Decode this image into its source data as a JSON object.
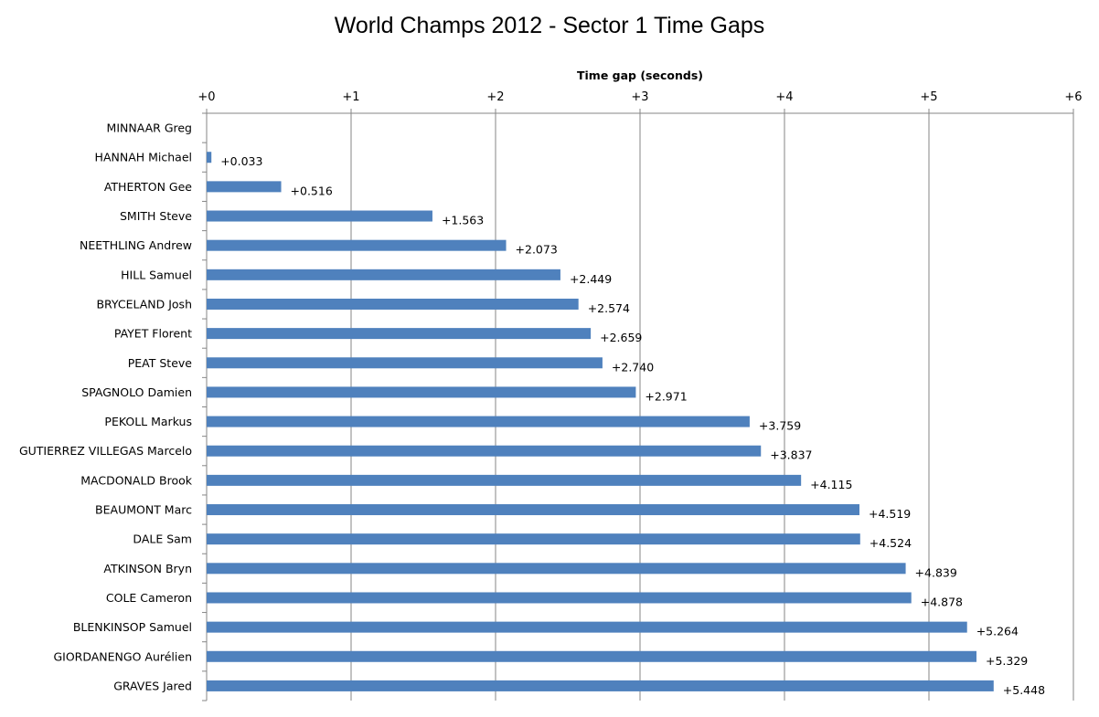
{
  "chart_data": {
    "type": "bar",
    "orientation": "horizontal",
    "title": "World Champs 2012 - Sector 1 Time Gaps",
    "xlabel": "Time gap (seconds)",
    "ylabel": "",
    "xlim": [
      0,
      6
    ],
    "x_ticks": [
      "+0",
      "+1",
      "+2",
      "+3",
      "+4",
      "+5",
      "+6"
    ],
    "x_axis_position": "top",
    "grid": "vertical major gridlines",
    "color": "#4f81bd",
    "categories": [
      "MINNAAR Greg",
      "HANNAH Michael",
      "ATHERTON Gee",
      "SMITH Steve",
      "NEETHLING Andrew",
      "HILL Samuel",
      "BRYCELAND Josh",
      "PAYET Florent",
      "PEAT Steve",
      "SPAGNOLO Damien",
      "PEKOLL Markus",
      "GUTIERREZ VILLEGAS Marcelo",
      "MACDONALD Brook",
      "BEAUMONT Marc",
      "DALE Sam",
      "ATKINSON Bryn",
      "COLE Cameron",
      "BLENKINSOP Samuel",
      "GIORDANENGO Aurélien",
      "GRAVES Jared"
    ],
    "values": [
      0,
      0.033,
      0.516,
      1.563,
      2.073,
      2.449,
      2.574,
      2.659,
      2.74,
      2.971,
      3.759,
      3.837,
      4.115,
      4.519,
      4.524,
      4.839,
      4.878,
      5.264,
      5.329,
      5.448
    ],
    "data_labels": [
      "",
      "+0.033",
      "+0.516",
      "+1.563",
      "+2.073",
      "+2.449",
      "+2.574",
      "+2.659",
      "+2.740",
      "+2.971",
      "+3.759",
      "+3.837",
      "+4.115",
      "+4.519",
      "+4.524",
      "+4.839",
      "+4.878",
      "+5.264",
      "+5.329",
      "+5.448"
    ]
  }
}
